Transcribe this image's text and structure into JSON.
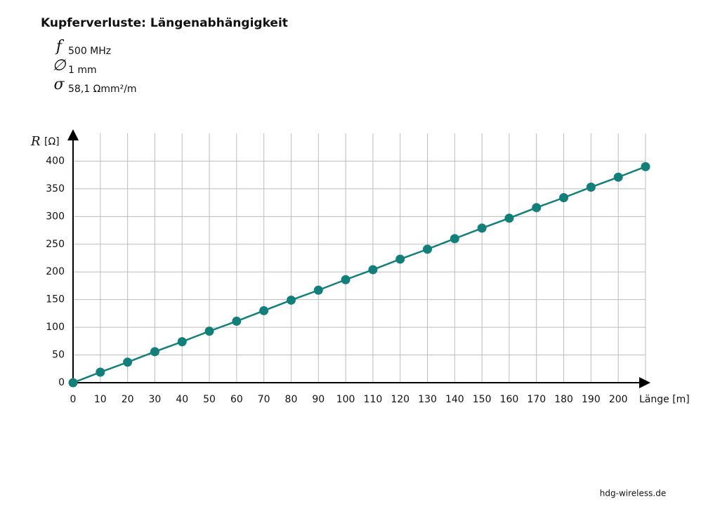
{
  "chart_data": {
    "type": "line",
    "title": "Kupferverluste: Längenabhängigkeit",
    "parameters": [
      {
        "symbol": "f",
        "text": "500 MHz"
      },
      {
        "symbol": "∅",
        "text": "1 mm"
      },
      {
        "symbol": "σ",
        "text": "58,1 Ωmm²/m"
      }
    ],
    "y_label_symbol": "R",
    "y_label_unit": "[Ω]",
    "x_label": "Länge [m]",
    "x": [
      0,
      10,
      20,
      30,
      40,
      50,
      60,
      70,
      80,
      90,
      100,
      110,
      120,
      130,
      140,
      150,
      160,
      170,
      180,
      190,
      200,
      210
    ],
    "values": [
      0,
      19,
      37,
      56,
      74,
      93,
      111,
      130,
      149,
      167,
      186,
      204,
      223,
      241,
      260,
      279,
      297,
      316,
      334,
      353,
      371,
      390
    ],
    "color": "#137f7b",
    "grid": true,
    "xlim": [
      0,
      210
    ],
    "xticks": [
      0,
      10,
      20,
      30,
      40,
      50,
      60,
      70,
      80,
      90,
      100,
      110,
      120,
      130,
      140,
      150,
      160,
      170,
      180,
      190,
      200
    ],
    "ylim": [
      0,
      450
    ],
    "yticks": [
      0,
      50,
      100,
      150,
      200,
      250,
      300,
      350,
      400
    ]
  },
  "footer": "hdg-wireless.de"
}
